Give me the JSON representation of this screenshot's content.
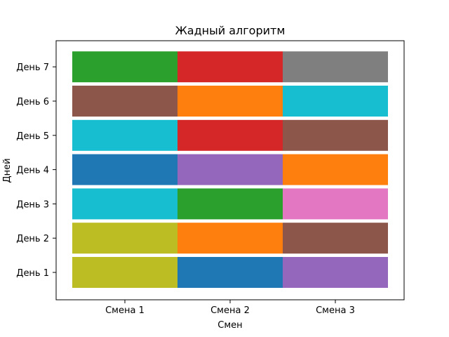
{
  "chart_data": {
    "type": "heatmap",
    "title": "Жадный алгоритм",
    "xlabel": "Смен",
    "ylabel": "Дней",
    "x_categories": [
      "Смена 1",
      "Смена 2",
      "Смена 3"
    ],
    "y_categories": [
      "День 1",
      "День 2",
      "День 3",
      "День 4",
      "День 5",
      "День 6",
      "День 7"
    ],
    "cells": [
      [
        "#bcbd22",
        "#1f77b4",
        "#9467bd"
      ],
      [
        "#bcbd22",
        "#ff7f0e",
        "#8c564b"
      ],
      [
        "#17becf",
        "#2ca02c",
        "#e377c2"
      ],
      [
        "#1f77b4",
        "#9467bd",
        "#ff7f0e"
      ],
      [
        "#17becf",
        "#d62728",
        "#8c564b"
      ],
      [
        "#8c564b",
        "#ff7f0e",
        "#17becf"
      ],
      [
        "#2ca02c",
        "#d62728",
        "#7f7f7f"
      ]
    ],
    "legend": false,
    "grid": false
  }
}
